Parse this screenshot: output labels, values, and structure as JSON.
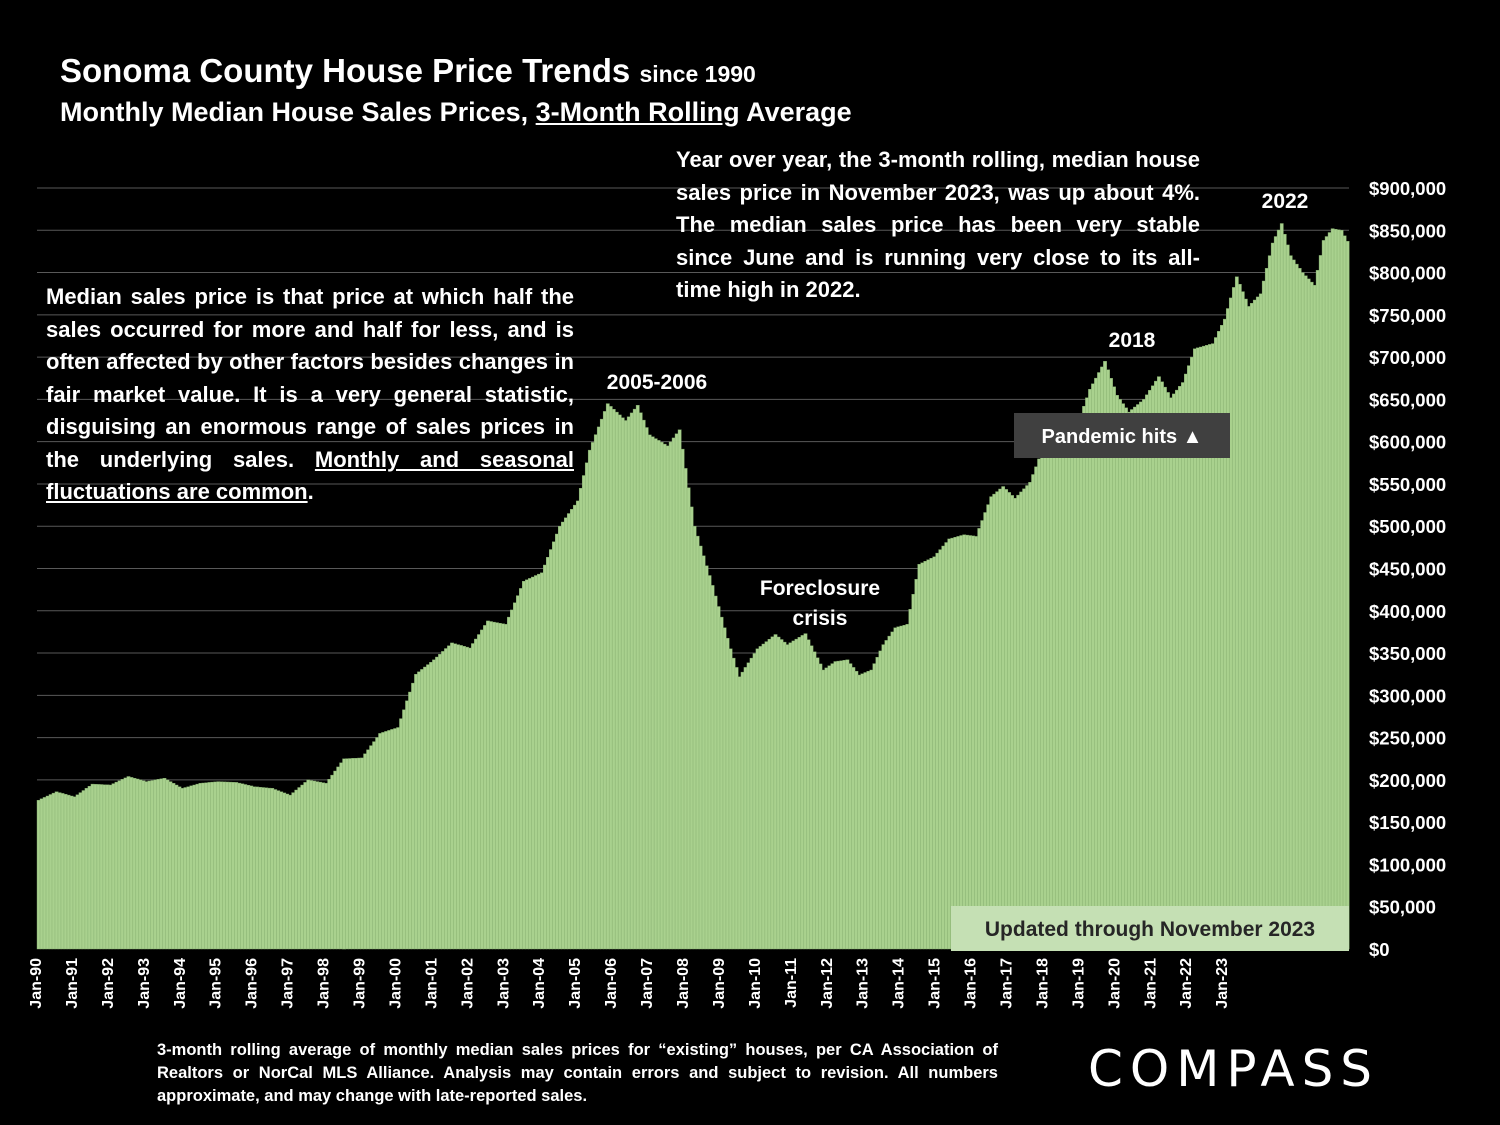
{
  "header": {
    "title": "Sonoma County House Price Trends",
    "title_suffix": "since 1990",
    "subtitle_pre": "Monthly Median House Sales Prices, ",
    "subtitle_underlined": "3-Month Rolling",
    "subtitle_post": " Average"
  },
  "notes": {
    "left_main": "Median sales price is that price at which half the sales occurred for more and half for less, and is often affected by other factors besides changes in fair market value. It is a very general statistic, disguising an enormous range of sales prices in the underlying sales. ",
    "left_underlined": "Monthly and seasonal fluctuations are common",
    "left_end": ".",
    "right": "Year over year, the 3-month rolling, median house sales price in November 2023, was up about 4%. The median sales price has been very stable since June and is running very close to its all-time high in 2022."
  },
  "footnote": "3-month rolling average of monthly median sales prices for “existing” houses, per CA Association of Realtors or NorCal MLS Alliance. Analysis may contain errors and subject to revision. All numbers approximate, and may change with late-reported sales.",
  "logo": "COMPASS",
  "colors": {
    "bar": "#a9d18e",
    "bar_edge": "#7fa86a",
    "grid": "#595959",
    "annotation_box": "#404040",
    "updated_box": "#c5e0b4"
  },
  "chart_data": {
    "type": "bar",
    "title": "Sonoma County House Price Trends since 1990",
    "subtitle": "Monthly Median House Sales Prices, 3-Month Rolling Average",
    "x_start": "Jan-90",
    "x_end": "Nov-23",
    "ylim": [
      0,
      900000
    ],
    "y_ticks": [
      "$0",
      "$50,000",
      "$100,000",
      "$150,000",
      "$200,000",
      "$250,000",
      "$300,000",
      "$350,000",
      "$400,000",
      "$450,000",
      "$500,000",
      "$550,000",
      "$600,000",
      "$650,000",
      "$700,000",
      "$750,000",
      "$800,000",
      "$850,000",
      "$900,000"
    ],
    "x_tick_labels": [
      "Jan-90",
      "Jan-91",
      "Jan-92",
      "Jan-93",
      "Jan-94",
      "Jan-95",
      "Jan-96",
      "Jan-97",
      "Jan-98",
      "Jan-99",
      "Jan-00",
      "Jan-01",
      "Jan-02",
      "Jan-03",
      "Jan-04",
      "Jan-05",
      "Jan-06",
      "Jan-07",
      "Jan-08",
      "Jan-09",
      "Jan-10",
      "Jan-11",
      "Jan-12",
      "Jan-13",
      "Jan-14",
      "Jan-15",
      "Jan-16",
      "Jan-17",
      "Jan-18",
      "Jan-19",
      "Jan-20",
      "Jan-21",
      "Jan-22",
      "Jan-23"
    ],
    "keypoints": [
      [
        0,
        176000
      ],
      [
        6,
        186000
      ],
      [
        12,
        180000
      ],
      [
        18,
        195000
      ],
      [
        24,
        194000
      ],
      [
        30,
        204000
      ],
      [
        36,
        198000
      ],
      [
        42,
        202000
      ],
      [
        48,
        190000
      ],
      [
        54,
        196000
      ],
      [
        60,
        198000
      ],
      [
        66,
        197000
      ],
      [
        72,
        192000
      ],
      [
        78,
        190000
      ],
      [
        84,
        182000
      ],
      [
        90,
        200000
      ],
      [
        96,
        196000
      ],
      [
        102,
        225000
      ],
      [
        108,
        226000
      ],
      [
        114,
        255000
      ],
      [
        120,
        262000
      ],
      [
        126,
        325000
      ],
      [
        132,
        342000
      ],
      [
        138,
        362000
      ],
      [
        144,
        356000
      ],
      [
        150,
        388000
      ],
      [
        156,
        384000
      ],
      [
        162,
        435000
      ],
      [
        168,
        445000
      ],
      [
        174,
        500000
      ],
      [
        180,
        530000
      ],
      [
        184,
        590000
      ],
      [
        190,
        645000
      ],
      [
        196,
        625000
      ],
      [
        200,
        643000
      ],
      [
        204,
        608000
      ],
      [
        210,
        595000
      ],
      [
        214,
        614000
      ],
      [
        219,
        500000
      ],
      [
        225,
        430000
      ],
      [
        231,
        355000
      ],
      [
        234,
        322000
      ],
      [
        240,
        355000
      ],
      [
        246,
        372000
      ],
      [
        250,
        360000
      ],
      [
        256,
        373000
      ],
      [
        262,
        330000
      ],
      [
        266,
        340000
      ],
      [
        270,
        342000
      ],
      [
        274,
        324000
      ],
      [
        278,
        330000
      ],
      [
        282,
        360000
      ],
      [
        286,
        380000
      ],
      [
        290,
        384000
      ],
      [
        294,
        455000
      ],
      [
        299,
        464000
      ],
      [
        304,
        485000
      ],
      [
        309,
        490000
      ],
      [
        313,
        488000
      ],
      [
        318,
        535000
      ],
      [
        322,
        547000
      ],
      [
        326,
        533000
      ],
      [
        331,
        552000
      ],
      [
        336,
        598000
      ],
      [
        341,
        608000
      ],
      [
        346,
        612000
      ],
      [
        351,
        662000
      ],
      [
        356,
        695000
      ],
      [
        360,
        655000
      ],
      [
        364,
        635000
      ],
      [
        369,
        650000
      ],
      [
        374,
        677000
      ],
      [
        378,
        652000
      ],
      [
        382,
        670000
      ],
      [
        386,
        710000
      ],
      [
        392,
        716000
      ],
      [
        396,
        745000
      ],
      [
        400,
        795000
      ],
      [
        404,
        760000
      ],
      [
        408,
        775000
      ],
      [
        412,
        835000
      ],
      [
        415,
        858000
      ],
      [
        418,
        820000
      ],
      [
        422,
        800000
      ],
      [
        426,
        785000
      ],
      [
        429,
        838000
      ],
      [
        432,
        852000
      ],
      [
        435,
        850000
      ],
      [
        437,
        837000
      ]
    ],
    "annotations": [
      {
        "label": "2005-2006"
      },
      {
        "label": "Foreclosure"
      },
      {
        "label": "crisis"
      },
      {
        "label": "2018"
      },
      {
        "label": "2022"
      },
      {
        "label": "Pandemic hits ▲"
      },
      {
        "label": "Updated through November 2023"
      }
    ]
  }
}
